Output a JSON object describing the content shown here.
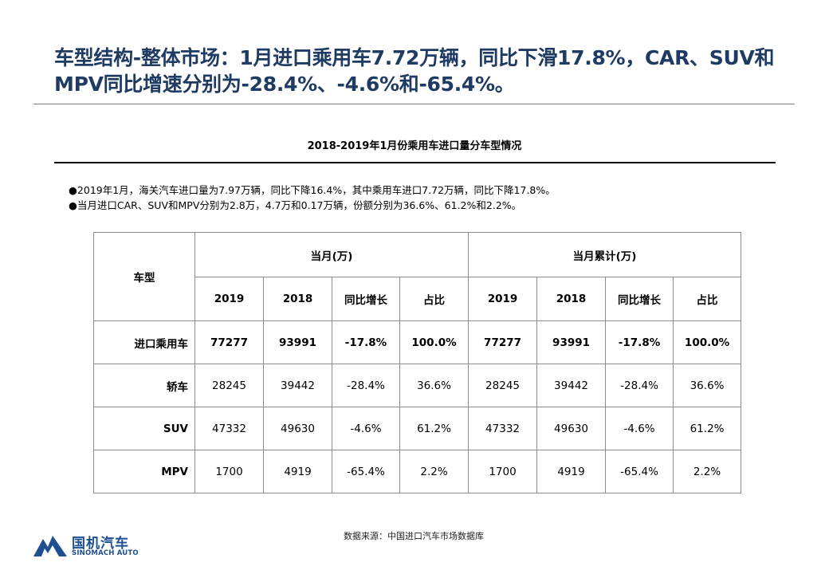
{
  "page_title": "车型结构-整体市场：1月进口乘用车7.72万辆，同比下滑17.8%，CAR、SUV和MPV同比增速分别为-28.4%、-4.6%和-65.4%。",
  "subtitle": "2018-2019年1月份乘用车进口量分车型情况",
  "bullets": [
    "●2019年1月，海关汽车进口量为7.97万辆，同比下降16.4%，其中乘用车进口7.72万辆，同比下降17.8%。",
    "●当月进口CAR、SUV和MPV分别为2.8万，4.7万和0.17万辆，份额分别为36.6%、61.2%和2.2%。"
  ],
  "table": {
    "corner_header": "车型",
    "group_headers": [
      "当月(万)",
      "当月累计(万)"
    ],
    "sub_headers": [
      "2019",
      "2018",
      "同比增长",
      "占比",
      "2019",
      "2018",
      "同比增长",
      "占比"
    ],
    "rows": [
      {
        "label": "进口乘用车",
        "cells": [
          "77277",
          "93991",
          "-17.8%",
          "100.0%",
          "77277",
          "93991",
          "-17.8%",
          "100.0%"
        ]
      },
      {
        "label": "轿车",
        "cells": [
          "28245",
          "39442",
          "-28.4%",
          "36.6%",
          "28245",
          "39442",
          "-28.4%",
          "36.6%"
        ]
      },
      {
        "label": "SUV",
        "cells": [
          "47332",
          "49630",
          "-4.6%",
          "61.2%",
          "47332",
          "49630",
          "-4.6%",
          "61.2%"
        ]
      },
      {
        "label": "MPV",
        "cells": [
          "1700",
          "4919",
          "-65.4%",
          "2.2%",
          "1700",
          "4919",
          "-65.4%",
          "2.2%"
        ]
      }
    ]
  },
  "source": "数据来源：中国进口汽车市场数据库",
  "logo": {
    "name_cn": "国机汽车",
    "name_en": "SINOMACH AUTO",
    "icon": "sinomach-logo-icon"
  },
  "colors": {
    "title": "#1f3b63",
    "logo": "#1d4f91",
    "border": "#8c8c8c"
  }
}
